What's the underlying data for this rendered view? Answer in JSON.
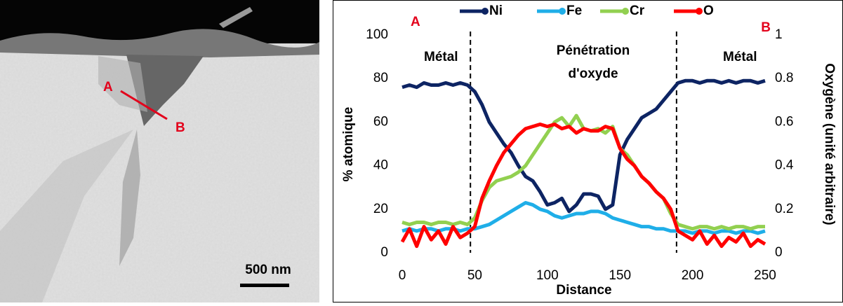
{
  "image": {
    "labels": [
      "A",
      "B"
    ],
    "scale": "500 nm"
  },
  "chart_data": {
    "type": "line",
    "x": [
      0,
      5,
      10,
      15,
      20,
      25,
      30,
      35,
      40,
      45,
      50,
      55,
      60,
      65,
      70,
      75,
      80,
      85,
      90,
      95,
      100,
      105,
      110,
      115,
      120,
      125,
      130,
      135,
      140,
      145,
      150,
      155,
      160,
      165,
      170,
      175,
      180,
      185,
      190,
      195,
      200,
      205,
      210,
      215,
      220,
      225,
      230,
      235,
      240,
      245,
      250
    ],
    "series": [
      {
        "name": "Ni",
        "color": "#0d2463",
        "values": [
          76,
          77,
          76,
          78,
          77,
          77,
          78,
          77,
          78,
          77,
          74,
          68,
          60,
          55,
          50,
          46,
          40,
          35,
          33,
          28,
          22,
          23,
          25,
          19,
          22,
          27,
          27,
          26,
          20,
          22,
          45,
          52,
          57,
          62,
          64,
          66,
          70,
          74,
          78,
          79,
          79,
          78,
          79,
          79,
          78,
          79,
          78,
          79,
          79,
          78,
          79
        ]
      },
      {
        "name": "Fe",
        "color": "#1faee8",
        "values": [
          10,
          11,
          10,
          11,
          11,
          10,
          11,
          11,
          10,
          11,
          11,
          12,
          13,
          15,
          17,
          19,
          21,
          23,
          22,
          20,
          19,
          17,
          16,
          17,
          18,
          18,
          19,
          19,
          18,
          16,
          15,
          14,
          13,
          12,
          12,
          11,
          11,
          10,
          10,
          10,
          9,
          10,
          10,
          9,
          10,
          10,
          9,
          10,
          10,
          9,
          10
        ]
      },
      {
        "name": "Cr",
        "color": "#92d050",
        "values": [
          14,
          13,
          14,
          14,
          13,
          14,
          14,
          13,
          14,
          13,
          16,
          24,
          30,
          33,
          34,
          35,
          37,
          40,
          45,
          50,
          55,
          60,
          62,
          58,
          63,
          57,
          56,
          57,
          55,
          58,
          48,
          45,
          40,
          35,
          32,
          28,
          25,
          18,
          13,
          12,
          11,
          12,
          12,
          11,
          12,
          11,
          12,
          12,
          11,
          12,
          12
        ]
      },
      {
        "name": "O",
        "color": "#ff0000",
        "axis": "y2",
        "values": [
          0.05,
          0.11,
          0.03,
          0.12,
          0.06,
          0.1,
          0.04,
          0.12,
          0.07,
          0.09,
          0.12,
          0.25,
          0.33,
          0.4,
          0.46,
          0.5,
          0.54,
          0.57,
          0.58,
          0.59,
          0.58,
          0.59,
          0.57,
          0.58,
          0.55,
          0.57,
          0.56,
          0.56,
          0.58,
          0.57,
          0.48,
          0.43,
          0.4,
          0.35,
          0.32,
          0.28,
          0.25,
          0.2,
          0.1,
          0.08,
          0.06,
          0.1,
          0.04,
          0.08,
          0.03,
          0.07,
          0.05,
          0.09,
          0.03,
          0.06,
          0.04
        ]
      }
    ],
    "xlim": [
      0,
      250
    ],
    "xticks": [
      0,
      50,
      100,
      150,
      200,
      250
    ],
    "ylim": [
      0,
      100
    ],
    "yticks": [
      0,
      20,
      40,
      60,
      80,
      100
    ],
    "y2lim": [
      0,
      1
    ],
    "y2ticks": [
      0,
      0.2,
      0.4,
      0.6,
      0.8,
      1
    ],
    "xlabel": "Distance",
    "ylabel": "% atomique",
    "y2label": "Oxygène (unité arbitraire)",
    "vlines": [
      47,
      189
    ],
    "annotations": [
      "A",
      "B",
      "Métal",
      "Pénétration",
      "d'oxyde",
      "Métal"
    ],
    "legend": "top"
  }
}
